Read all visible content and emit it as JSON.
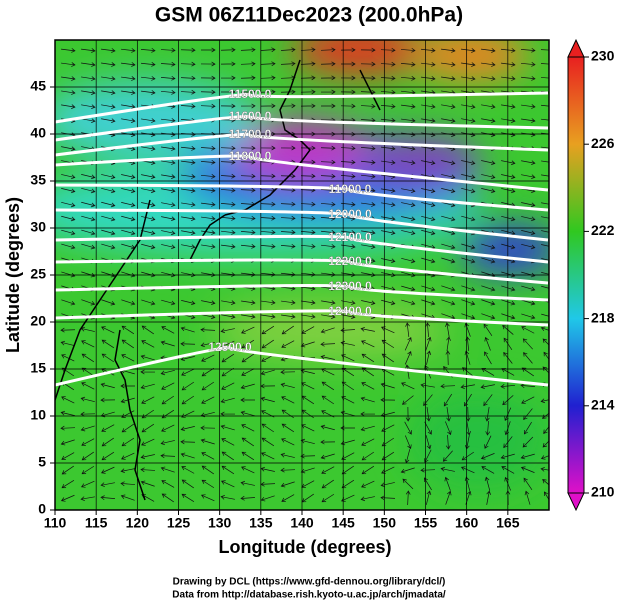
{
  "chart_data": {
    "type": "map",
    "title": "GSM 06Z11Dec2023 (200.0hPa)",
    "x_label": "Longitude (degrees)",
    "y_label": "Latitude  (degrees)",
    "xlim": [
      110,
      170
    ],
    "xticks": [
      110,
      115,
      120,
      125,
      130,
      135,
      140,
      145,
      150,
      155,
      160,
      165
    ],
    "ylim": [
      0,
      50
    ],
    "yticks": [
      0,
      5,
      10,
      15,
      20,
      25,
      30,
      35,
      40,
      45
    ],
    "colorbar": {
      "lim": [
        210,
        230
      ],
      "ticks": [
        210,
        214,
        218,
        222,
        226,
        230
      ]
    },
    "contours": [
      {
        "value": 11500,
        "label": "11500.0"
      },
      {
        "value": 11600,
        "label": "11600.0"
      },
      {
        "value": 11700,
        "label": "11700.0"
      },
      {
        "value": 11800,
        "label": "11800.0"
      },
      {
        "value": 11900,
        "label": "11900.0"
      },
      {
        "value": 12000,
        "label": "12000.0"
      },
      {
        "value": 12100,
        "label": "12100.0"
      },
      {
        "value": 12200,
        "label": "12200.0"
      },
      {
        "value": 12300,
        "label": "12300.0"
      },
      {
        "value": 12400,
        "label": "12400.0"
      },
      {
        "value": 12500,
        "label": "12500.0"
      }
    ],
    "credits": [
      "Drawing by DCL (https://www.gfd-dennou.org/library/dcl/)",
      "Data from http://database.rish.kyoto-u.ac.jp/arch/jmadata/"
    ]
  }
}
